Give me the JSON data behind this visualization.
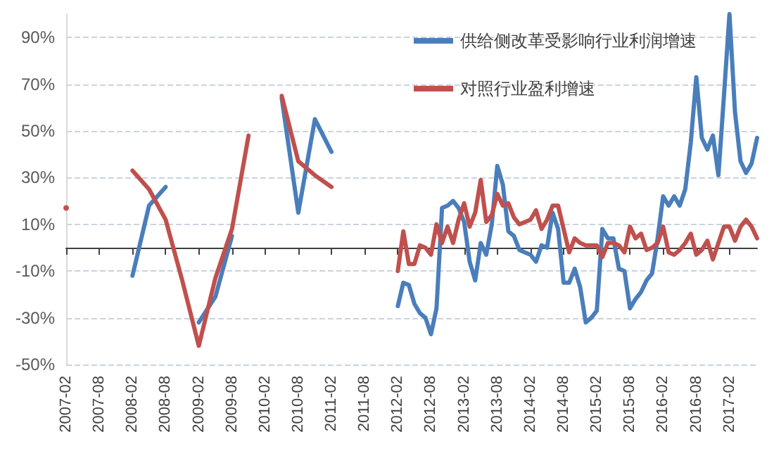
{
  "chart_data": {
    "type": "line",
    "xlim": [
      "2007-02",
      "2017-07"
    ],
    "xticks": [
      "2007-02",
      "2007-08",
      "2008-02",
      "2008-08",
      "2009-02",
      "2009-08",
      "2010-02",
      "2010-08",
      "2011-02",
      "2011-08",
      "2012-02",
      "2012-08",
      "2013-02",
      "2013-08",
      "2014-02",
      "2014-08",
      "2015-02",
      "2015-08",
      "2016-02",
      "2016-08",
      "2017-02"
    ],
    "ylim": [
      -50,
      100
    ],
    "yticks": [
      {
        "value": -50,
        "label": "-50%"
      },
      {
        "value": -30,
        "label": "-30%"
      },
      {
        "value": -10,
        "label": "-10%"
      },
      {
        "value": 10,
        "label": "10%"
      },
      {
        "value": 30,
        "label": "30%"
      },
      {
        "value": 50,
        "label": "50%"
      },
      {
        "value": 70,
        "label": "70%"
      },
      {
        "value": 90,
        "label": "90%"
      }
    ],
    "grid": "y",
    "legend": "top right",
    "line_style": "solid",
    "series": [
      {
        "name": "供给侧改革受影响行业利润增速",
        "color": "#4a7ebb",
        "x": [
          "2008-02",
          "2008-05",
          "2008-08",
          "2008-11",
          "2009-02",
          "2009-05",
          "2009-08",
          "2009-11",
          "2010-02",
          "2010-05",
          "2010-08",
          "2010-11",
          "2011-02",
          "2011-05",
          "2011-08",
          "2011-11",
          "2012-02",
          "2012-03",
          "2012-04",
          "2012-05",
          "2012-06",
          "2012-07",
          "2012-08",
          "2012-09",
          "2012-10",
          "2012-11",
          "2012-12",
          "2013-01",
          "2013-02",
          "2013-03",
          "2013-04",
          "2013-05",
          "2013-06",
          "2013-07",
          "2013-08",
          "2013-09",
          "2013-10",
          "2013-11",
          "2013-12",
          "2014-01",
          "2014-02",
          "2014-03",
          "2014-04",
          "2014-05",
          "2014-06",
          "2014-07",
          "2014-08",
          "2014-09",
          "2014-10",
          "2014-11",
          "2014-12",
          "2015-01",
          "2015-02",
          "2015-03",
          "2015-04",
          "2015-05",
          "2015-06",
          "2015-07",
          "2015-08",
          "2015-09",
          "2015-10",
          "2015-11",
          "2015-12",
          "2016-01",
          "2016-02",
          "2016-03",
          "2016-04",
          "2016-05",
          "2016-06",
          "2016-07",
          "2016-08",
          "2016-09",
          "2016-10",
          "2016-11",
          "2016-12",
          "2017-01",
          "2017-02",
          "2017-03",
          "2017-04",
          "2017-05",
          "2017-06",
          "2017-07"
        ],
        "values": [
          -12,
          18,
          26,
          null,
          -32,
          -21,
          5,
          null,
          null,
          64,
          15,
          55,
          41,
          null,
          null,
          null,
          -25,
          -15,
          -16,
          -24,
          -28,
          -30,
          -37,
          -26,
          17,
          18,
          20,
          17,
          11,
          -6,
          -14,
          2,
          -3,
          10,
          35,
          27,
          7,
          5,
          -1,
          -2,
          -3,
          -6,
          1,
          0,
          15,
          8,
          -15,
          -15,
          -9,
          -17,
          -32,
          -30,
          -27,
          8,
          4,
          4,
          -9,
          -10,
          -26,
          -22,
          -19,
          -14,
          -11,
          4,
          22,
          18,
          22,
          18,
          25,
          45,
          73,
          47,
          42,
          48,
          31,
          65,
          100,
          58,
          37,
          32,
          36,
          47
        ]
      },
      {
        "name": "对照行业盈利增速",
        "color": "#c0504d",
        "x": [
          "2007-02",
          "2007-05",
          "2007-08",
          "2007-11",
          "2008-02",
          "2008-05",
          "2008-08",
          "2008-11",
          "2009-02",
          "2009-05",
          "2009-08",
          "2009-11",
          "2010-02",
          "2010-05",
          "2010-08",
          "2010-11",
          "2011-02",
          "2011-05",
          "2011-08",
          "2011-11",
          "2012-02",
          "2012-03",
          "2012-04",
          "2012-05",
          "2012-06",
          "2012-07",
          "2012-08",
          "2012-09",
          "2012-10",
          "2012-11",
          "2012-12",
          "2013-01",
          "2013-02",
          "2013-03",
          "2013-04",
          "2013-05",
          "2013-06",
          "2013-07",
          "2013-08",
          "2013-09",
          "2013-10",
          "2013-11",
          "2013-12",
          "2014-01",
          "2014-02",
          "2014-03",
          "2014-04",
          "2014-05",
          "2014-06",
          "2014-07",
          "2014-08",
          "2014-09",
          "2014-10",
          "2014-11",
          "2014-12",
          "2015-01",
          "2015-02",
          "2015-03",
          "2015-04",
          "2015-05",
          "2015-06",
          "2015-07",
          "2015-08",
          "2015-09",
          "2015-10",
          "2015-11",
          "2015-12",
          "2016-01",
          "2016-02",
          "2016-03",
          "2016-04",
          "2016-05",
          "2016-06",
          "2016-07",
          "2016-08",
          "2016-09",
          "2016-10",
          "2016-11",
          "2016-12",
          "2017-01",
          "2017-02",
          "2017-03",
          "2017-04",
          "2017-05",
          "2017-06",
          "2017-07"
        ],
        "values": [
          17,
          null,
          null,
          null,
          33,
          25,
          12,
          -14,
          -42,
          -13,
          8,
          48,
          null,
          65,
          37,
          31,
          26,
          null,
          null,
          null,
          -10,
          7,
          -7,
          -7,
          1,
          0,
          -3,
          10,
          2,
          9,
          2,
          12,
          19,
          9,
          15,
          29,
          11,
          14,
          23,
          18,
          19,
          13,
          10,
          11,
          12,
          16,
          8,
          12,
          18,
          18,
          8,
          -2,
          4,
          2,
          1,
          1,
          1,
          -4,
          2,
          2,
          1,
          -2,
          9,
          4,
          6,
          -1,
          0,
          2,
          9,
          -2,
          -3,
          -1,
          2,
          6,
          -3,
          -1,
          3,
          -5,
          2,
          9,
          9,
          3,
          9,
          12,
          9,
          4
        ]
      }
    ]
  }
}
